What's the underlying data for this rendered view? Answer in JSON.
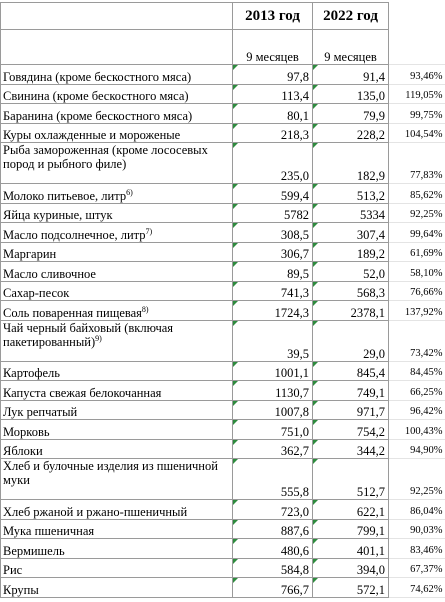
{
  "header": {
    "years": [
      "2013 год",
      "2022 год"
    ],
    "period": [
      "9 месяцев",
      "9 месяцев"
    ]
  },
  "rows": [
    {
      "name": "Говядина (кроме бескостного мяса)",
      "v2013": "97,8",
      "v2022": "91,4",
      "ratio": "93,46%"
    },
    {
      "name": "Свинина (кроме бескостного мяса)",
      "v2013": "113,4",
      "v2022": "135,0",
      "ratio": "119,05%"
    },
    {
      "name": "Баранина (кроме бескостного мяса)",
      "v2013": "80,1",
      "v2022": "79,9",
      "ratio": "99,75%"
    },
    {
      "name": "Куры охлажденные и мороженые",
      "v2013": "218,3",
      "v2022": "228,2",
      "ratio": "104,54%"
    },
    {
      "name": "Рыба замороженная (кроме лососевых пород и рыбного филе)",
      "v2013": "235,0",
      "v2022": "182,9",
      "ratio": "77,83%",
      "tall": true
    },
    {
      "name": "Молоко питьевое, литр",
      "note": "6)",
      "v2013": "599,4",
      "v2022": "513,2",
      "ratio": "85,62%"
    },
    {
      "name": "Яйца куриные, штук",
      "v2013": "5782",
      "v2022": "5334",
      "ratio": "92,25%"
    },
    {
      "name": "Масло подсолнечное, литр",
      "note": "7)",
      "v2013": "308,5",
      "v2022": "307,4",
      "ratio": "99,64%"
    },
    {
      "name": "Маргарин",
      "v2013": "306,7",
      "v2022": "189,2",
      "ratio": "61,69%"
    },
    {
      "name": "Масло сливочное",
      "v2013": "89,5",
      "v2022": "52,0",
      "ratio": "58,10%"
    },
    {
      "name": "Сахар-песок",
      "v2013": "741,3",
      "v2022": "568,3",
      "ratio": "76,66%"
    },
    {
      "name": "Соль поваренная пищевая",
      "note": "8)",
      "v2013": "1724,3",
      "v2022": "2378,1",
      "ratio": "137,92%"
    },
    {
      "name": "Чай черный байховый (включая пакетированный)",
      "note": "9)",
      "v2013": "39,5",
      "v2022": "29,0",
      "ratio": "73,42%",
      "tall": true
    },
    {
      "name": "Картофель",
      "v2013": "1001,1",
      "v2022": "845,4",
      "ratio": "84,45%"
    },
    {
      "name": "Капуста свежая белокочанная",
      "v2013": "1130,7",
      "v2022": "749,1",
      "ratio": "66,25%"
    },
    {
      "name": "Лук репчатый",
      "v2013": "1007,8",
      "v2022": "971,7",
      "ratio": "96,42%"
    },
    {
      "name": "Морковь",
      "v2013": "751,0",
      "v2022": "754,2",
      "ratio": "100,43%"
    },
    {
      "name": "Яблоки",
      "v2013": "362,7",
      "v2022": "344,2",
      "ratio": "94,90%"
    },
    {
      "name": "Хлеб и булочные изделия из пшеничной муки",
      "v2013": "555,8",
      "v2022": "512,7",
      "ratio": "92,25%",
      "tall": true
    },
    {
      "name": "Хлеб ржаной и ржано-пшеничный",
      "v2013": "723,0",
      "v2022": "622,1",
      "ratio": "86,04%"
    },
    {
      "name": "Мука пшеничная",
      "v2013": "887,6",
      "v2022": "799,1",
      "ratio": "90,03%"
    },
    {
      "name": "Вермишель",
      "v2013": "480,6",
      "v2022": "401,1",
      "ratio": "83,46%"
    },
    {
      "name": "Рис",
      "v2013": "584,8",
      "v2022": "394,0",
      "ratio": "67,37%"
    },
    {
      "name": "Крупы",
      "v2013": "766,7",
      "v2022": "572,1",
      "ratio": "74,62%"
    }
  ]
}
